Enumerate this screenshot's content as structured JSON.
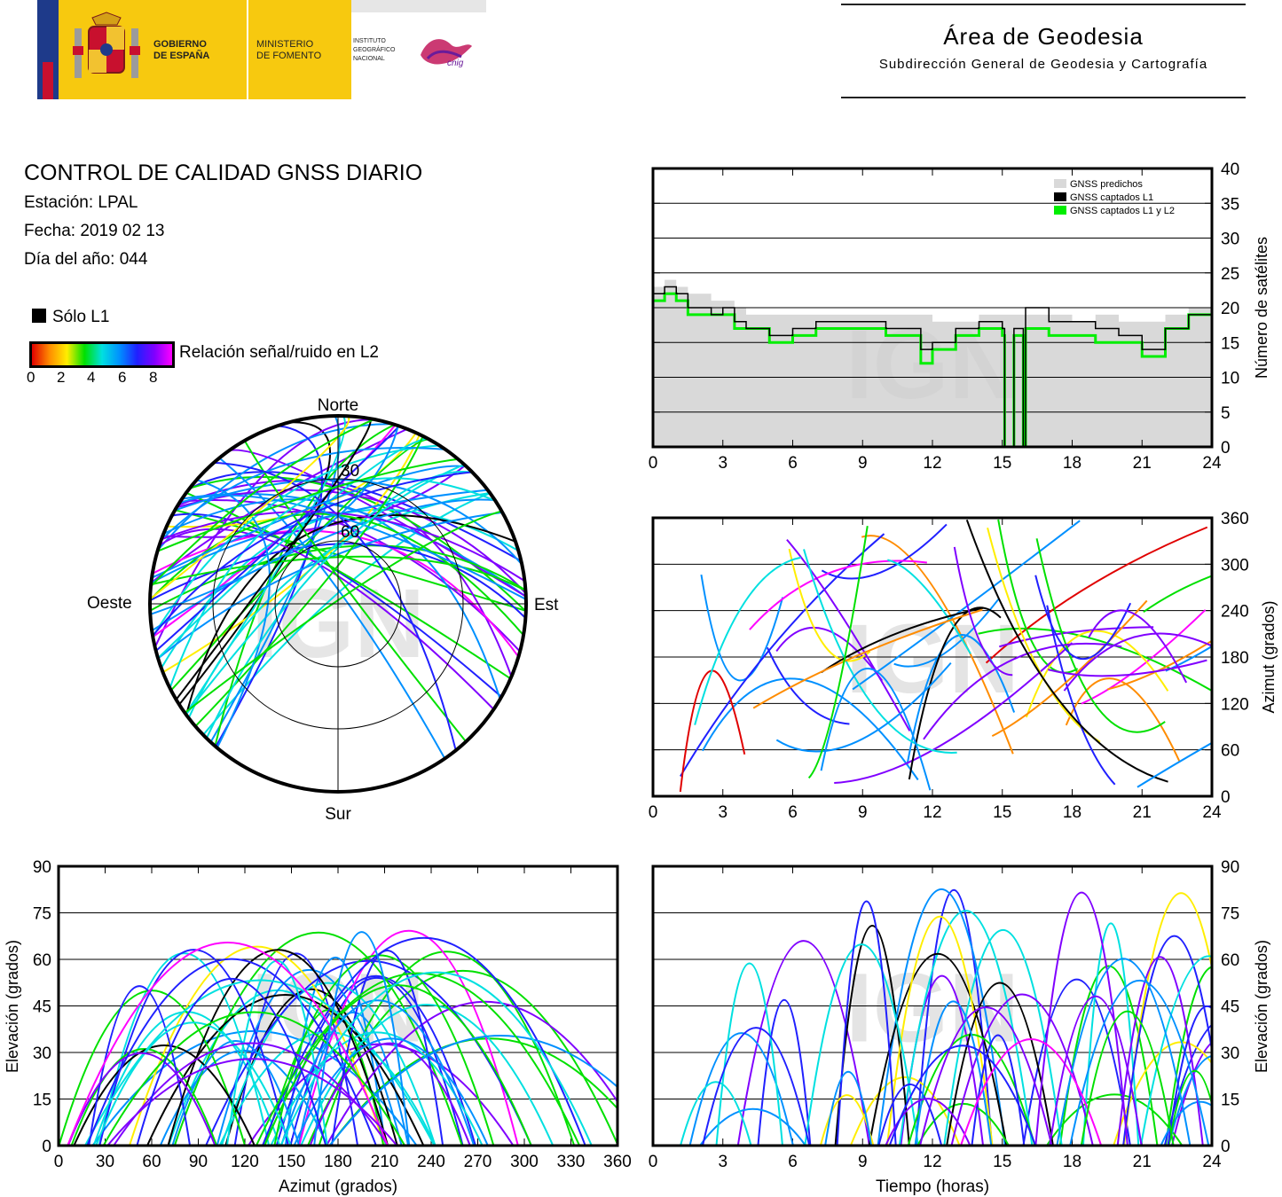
{
  "header": {
    "gov_line1": "GOBIERNO",
    "gov_line2": "DE ESPAÑA",
    "min_line1": "MINISTERIO",
    "min_line2": "DE FOMENTO",
    "inst_line1": "INSTITUTO",
    "inst_line2": "GEOGRÁFICO",
    "inst_line3": "NACIONAL",
    "cnig": "cnig",
    "area_title": "Área de Geodesia",
    "area_subtitle": "Subdirección General de Geodesia y Cartografía"
  },
  "info": {
    "title": "CONTROL DE CALIDAD GNSS DIARIO",
    "station": "Estación: LPAL",
    "date": "Fecha: 2019 02 13",
    "doy": "Día del año: 044",
    "legend_l1": "Sólo L1",
    "colorbar_label": "Relación señal/ruido en L2",
    "colorbar_ticks": [
      "0",
      "2",
      "4",
      "6",
      "8"
    ]
  },
  "watermark": "IGN",
  "colors": {
    "predicted": "#d9d9d9",
    "l1": "#000000",
    "l1l2": "#00ee00",
    "snr_scale": [
      "#e00000",
      "#ff8c00",
      "#ffee00",
      "#00e000",
      "#00e0e0",
      "#0090ff",
      "#2020ff",
      "#8000ff",
      "#ff00ff"
    ]
  },
  "chart_data": [
    {
      "type": "line",
      "id": "satellites",
      "xlabel": "",
      "ylabel": "Número de satélites",
      "xlim": [
        0,
        24
      ],
      "ylim": [
        0,
        40
      ],
      "xticks": [
        "0",
        "3",
        "6",
        "9",
        "12",
        "15",
        "18",
        "21",
        "24"
      ],
      "yticks": [
        "0",
        "5",
        "10",
        "15",
        "20",
        "25",
        "30",
        "35",
        "40"
      ],
      "grid": true,
      "legend_position": "top-right",
      "series": [
        {
          "name": "GNSS predichos",
          "x": [
            0,
            0.5,
            1,
            1.5,
            2,
            2.5,
            3,
            3.5,
            4,
            5,
            6,
            7,
            8,
            9,
            10,
            11,
            12,
            13,
            14,
            15,
            16,
            17,
            18,
            19,
            20,
            21,
            22,
            23,
            24
          ],
          "y": [
            23,
            24,
            23,
            22,
            22,
            21,
            21,
            20,
            19,
            19,
            19,
            19,
            19,
            19,
            19,
            19,
            18,
            18,
            19,
            19,
            19,
            19,
            18,
            19,
            18,
            18,
            19,
            20,
            22
          ]
        },
        {
          "name": "GNSS captados L1",
          "x": [
            0,
            0.5,
            1,
            1.5,
            2,
            2.5,
            3,
            3.5,
            4,
            5,
            6,
            7,
            8,
            9,
            10,
            11,
            11.5,
            12,
            13,
            14,
            15,
            15.1,
            15.5,
            15.9,
            16,
            17,
            18,
            19,
            20,
            21,
            22,
            23,
            24
          ],
          "y": [
            22,
            23,
            22,
            20,
            20,
            19,
            20,
            18,
            17,
            16,
            17,
            18,
            18,
            18,
            17,
            17,
            14,
            15,
            17,
            18,
            17,
            0,
            17,
            0,
            20,
            18,
            18,
            17,
            16,
            14,
            17,
            19,
            22
          ]
        },
        {
          "name": "GNSS captados L1 y L2",
          "x": [
            0,
            0.5,
            1,
            1.5,
            2,
            2.5,
            3,
            3.5,
            4,
            5,
            6,
            7,
            8,
            9,
            10,
            11,
            11.5,
            12,
            13,
            14,
            15,
            15.1,
            15.5,
            15.9,
            16,
            17,
            18,
            19,
            20,
            21,
            22,
            23,
            24
          ],
          "y": [
            21,
            22,
            21,
            19,
            19,
            19,
            19,
            17,
            17,
            15,
            16,
            17,
            17,
            17,
            16,
            16,
            12,
            14,
            16,
            17,
            16,
            0,
            16,
            0,
            17,
            16,
            16,
            15,
            15,
            13,
            17,
            19,
            22
          ]
        }
      ]
    },
    {
      "type": "scatter",
      "id": "azimuth-time",
      "xlabel": "",
      "ylabel": "Azimut (grados)",
      "xlim": [
        0,
        24
      ],
      "ylim": [
        0,
        360
      ],
      "xticks": [
        "0",
        "3",
        "6",
        "9",
        "12",
        "15",
        "18",
        "21",
        "24"
      ],
      "yticks": [
        "0",
        "60",
        "120",
        "180",
        "240",
        "300",
        "360"
      ],
      "grid": true
    },
    {
      "type": "scatter",
      "id": "elevation-azimuth",
      "xlabel": "Azimut (grados)",
      "ylabel": "Elevación (grados)",
      "xlim": [
        0,
        360
      ],
      "ylim": [
        0,
        90
      ],
      "xticks": [
        "0",
        "30",
        "60",
        "90",
        "120",
        "150",
        "180",
        "210",
        "240",
        "270",
        "300",
        "330",
        "360"
      ],
      "yticks": [
        "0",
        "15",
        "30",
        "45",
        "60",
        "75",
        "90"
      ],
      "grid": true
    },
    {
      "type": "scatter",
      "id": "elevation-time",
      "xlabel": "Tiempo (horas)",
      "ylabel": "Elevación (grados)",
      "xlim": [
        0,
        24
      ],
      "ylim": [
        0,
        90
      ],
      "xticks": [
        "0",
        "3",
        "6",
        "9",
        "12",
        "15",
        "18",
        "21",
        "24"
      ],
      "yticks": [
        "0",
        "15",
        "30",
        "45",
        "60",
        "75",
        "90"
      ],
      "grid": true
    },
    {
      "type": "scatter",
      "id": "skyplot",
      "directions": {
        "north": "Norte",
        "south": "Sur",
        "east": "Este",
        "west": "Oeste"
      },
      "rings": [
        "30",
        "60"
      ]
    }
  ]
}
